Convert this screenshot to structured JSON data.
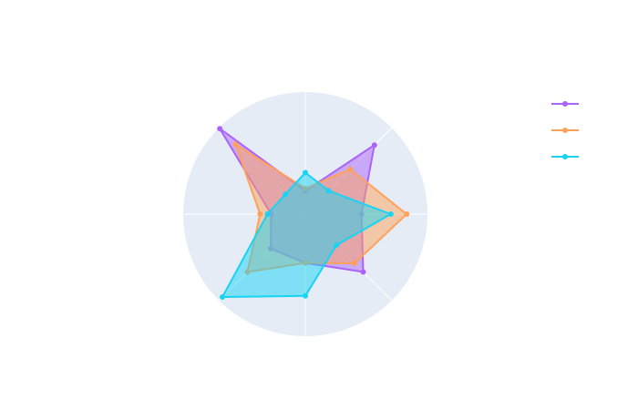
{
  "chart_data": {
    "type": "radar",
    "categories": [
      null,
      null,
      null,
      null,
      null,
      null,
      null,
      null
    ],
    "rlim": [
      0,
      10
    ],
    "legend": "top-right",
    "series": [
      {
        "color": "#ab63fa",
        "values": [
          4.6,
          8,
          1.9,
          9.9,
          2.8,
          4,
          4,
          6.7
        ]
      },
      {
        "color": "#FFA15A",
        "values": [
          8.3,
          5.2,
          2.1,
          8.1,
          3.7,
          6.7,
          4,
          5.7
        ]
      },
      {
        "color": "#19d3f3",
        "values": [
          7,
          2.7,
          3.4,
          2.3,
          3.1,
          9.6,
          6.7,
          3.6
        ]
      }
    ]
  }
}
